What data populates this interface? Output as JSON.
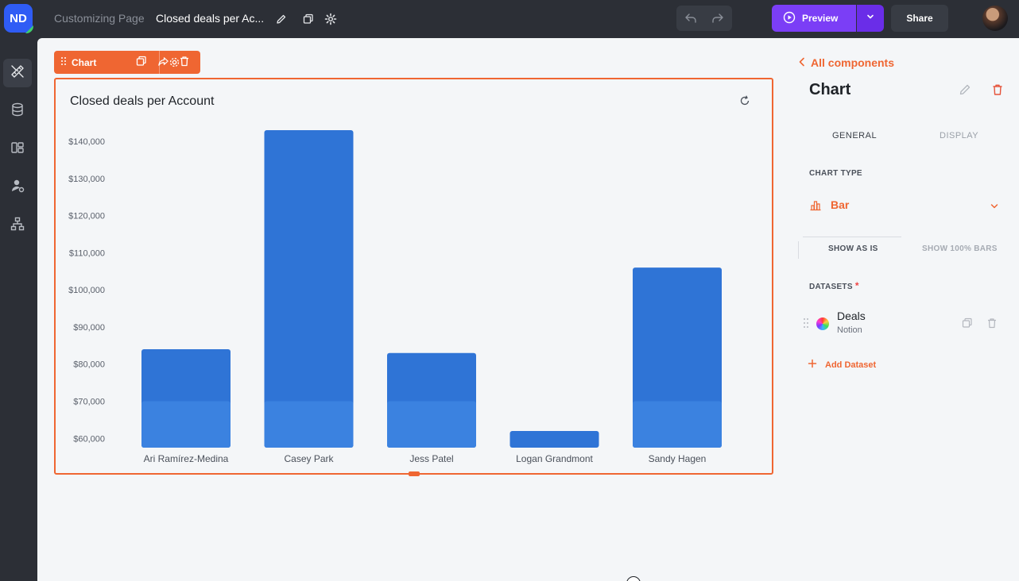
{
  "app": {
    "logo_text": "ND",
    "breadcrumb": "Customizing Page",
    "page_name": "Closed deals per Ac..."
  },
  "topbar": {
    "preview_label": "Preview",
    "share_label": "Share"
  },
  "chart_toolbar": {
    "label": "Chart"
  },
  "chart_data": {
    "type": "bar",
    "title": "Closed deals per Account",
    "xlabel": "",
    "ylabel": "",
    "categories": [
      "Ari Ramírez-Medina",
      "Casey Park",
      "Jess Patel",
      "Logan Grandmont",
      "Sandy Hagen"
    ],
    "values": [
      84000,
      143000,
      83000,
      62000,
      106000
    ],
    "y_ticks": [
      "$60,000",
      "$70,000",
      "$80,000",
      "$90,000",
      "$100,000",
      "$110,000",
      "$120,000",
      "$130,000",
      "$140,000"
    ],
    "y_tick_values": [
      60000,
      70000,
      80000,
      90000,
      100000,
      110000,
      120000,
      130000,
      140000
    ],
    "ylim": [
      57500,
      146000
    ],
    "grid": false,
    "legend": "none",
    "colors": {
      "bar_top": "#2f74d6",
      "bar_bottom": "#3b82e0"
    }
  },
  "panel": {
    "back_label": "All components",
    "title": "Chart",
    "tabs": [
      "GENERAL",
      "DISPLAY"
    ],
    "active_tab": "GENERAL",
    "chart_type_label": "CHART TYPE",
    "chart_type_value": "Bar",
    "segment_options": [
      "SHOW AS IS",
      "SHOW 100% BARS"
    ],
    "datasets_label": "DATASETS",
    "required_mark": "*",
    "dataset": {
      "name": "Deals",
      "source": "Notion"
    },
    "add_dataset_label": "Add Dataset"
  },
  "colors": {
    "accent": "#ef6632",
    "preview": "#7b3ef6",
    "dark": "#2c2f36",
    "canvas": "#f4f6f8"
  }
}
